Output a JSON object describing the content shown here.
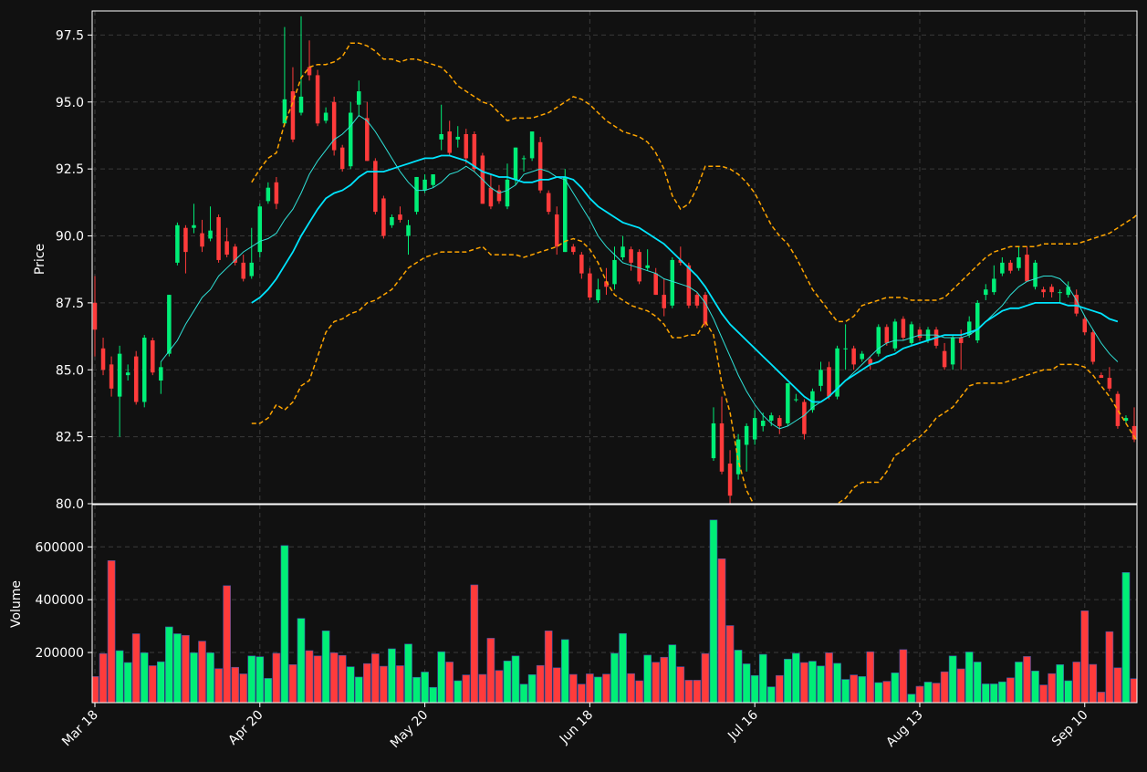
{
  "chart_data": {
    "type": "candlestick",
    "price_panel": {
      "ylabel": "Price",
      "ylim": [
        80.0,
        98.4
      ],
      "yticks": [
        80.0,
        82.5,
        85.0,
        87.5,
        90.0,
        92.5,
        95.0,
        97.5
      ],
      "ytick_labels": [
        "80.0",
        "82.5",
        "85.0",
        "87.5",
        "90.0",
        "92.5",
        "95.0",
        "97.5"
      ],
      "grid": true
    },
    "volume_panel": {
      "ylabel": "Volume",
      "ylim": [
        10000,
        760000
      ],
      "yticks": [
        200000,
        400000,
        600000
      ],
      "ytick_labels": [
        "200000",
        "400000",
        "600000"
      ],
      "grid": true
    },
    "x_axis": {
      "n_days": 127,
      "tick_positions": [
        0,
        20,
        40,
        60,
        80,
        100,
        120
      ],
      "tick_labels": [
        "Mar 18",
        "Apr 20",
        "May 20",
        "Jun 18",
        "Jul 16",
        "Aug 13",
        "Sep 10"
      ]
    },
    "colors": {
      "up": "#00ee77",
      "down": "#ff3b3b",
      "ma_fast": "#2fe0d6",
      "ma_slow": "#00e5ff",
      "band": "#ffa500",
      "grid": "#3a3a3a",
      "background": "#111111",
      "spine": "#ffffff"
    },
    "ohlc": [
      [
        87.5,
        88.5,
        85.5,
        86.5
      ],
      [
        85.8,
        86.2,
        84.8,
        85.0
      ],
      [
        85.2,
        85.5,
        84.0,
        84.3
      ],
      [
        84.0,
        85.9,
        82.5,
        85.6
      ],
      [
        84.8,
        85.2,
        84.6,
        84.9
      ],
      [
        85.5,
        85.7,
        83.7,
        83.8
      ],
      [
        83.8,
        86.3,
        83.6,
        86.2
      ],
      [
        86.1,
        86.2,
        84.8,
        84.9
      ],
      [
        84.6,
        85.3,
        84.1,
        85.1
      ],
      [
        85.6,
        87.8,
        85.5,
        87.8
      ],
      [
        89.0,
        90.5,
        88.9,
        90.4
      ],
      [
        90.3,
        90.4,
        88.6,
        89.4
      ],
      [
        90.3,
        91.2,
        90.1,
        90.4
      ],
      [
        90.1,
        90.6,
        89.4,
        89.6
      ],
      [
        89.9,
        91.1,
        89.8,
        90.2
      ],
      [
        90.7,
        90.8,
        89.0,
        89.1
      ],
      [
        89.8,
        90.3,
        89.2,
        89.3
      ],
      [
        89.6,
        89.7,
        88.9,
        89.0
      ],
      [
        89.0,
        89.3,
        88.3,
        88.4
      ],
      [
        88.5,
        90.3,
        88.4,
        89.0
      ],
      [
        89.4,
        91.2,
        89.2,
        91.1
      ],
      [
        91.3,
        92.0,
        91.2,
        91.8
      ],
      [
        92.0,
        92.2,
        91.0,
        91.2
      ],
      [
        94.2,
        97.8,
        94.1,
        95.1
      ],
      [
        95.4,
        96.3,
        93.5,
        93.6
      ],
      [
        94.6,
        98.2,
        94.5,
        95.2
      ],
      [
        96.3,
        97.3,
        95.8,
        96.0
      ],
      [
        96.0,
        96.2,
        94.1,
        94.2
      ],
      [
        94.3,
        94.8,
        94.2,
        94.6
      ],
      [
        95.0,
        95.2,
        93.0,
        93.2
      ],
      [
        93.3,
        93.4,
        92.4,
        92.5
      ],
      [
        92.6,
        95.0,
        92.5,
        94.6
      ],
      [
        94.9,
        95.8,
        94.5,
        95.4
      ],
      [
        94.4,
        95.0,
        92.8,
        92.8
      ],
      [
        92.8,
        92.9,
        90.8,
        90.9
      ],
      [
        91.4,
        91.5,
        89.9,
        90.0
      ],
      [
        90.4,
        90.8,
        90.3,
        90.7
      ],
      [
        90.8,
        91.1,
        90.5,
        90.6
      ],
      [
        90.0,
        90.6,
        89.3,
        90.4
      ],
      [
        90.9,
        92.2,
        90.8,
        92.2
      ],
      [
        91.7,
        92.3,
        91.6,
        92.1
      ],
      [
        91.9,
        92.3,
        91.8,
        92.3
      ],
      [
        93.6,
        94.9,
        93.2,
        93.8
      ],
      [
        93.9,
        94.3,
        93.0,
        93.1
      ],
      [
        93.6,
        94.1,
        93.3,
        93.7
      ],
      [
        93.8,
        94.0,
        92.7,
        92.9
      ],
      [
        93.8,
        93.9,
        92.4,
        92.5
      ],
      [
        93.0,
        93.1,
        91.2,
        91.2
      ],
      [
        91.8,
        92.3,
        91.0,
        91.1
      ],
      [
        91.7,
        91.9,
        91.2,
        91.3
      ],
      [
        91.1,
        92.7,
        91.0,
        92.1
      ],
      [
        92.1,
        93.3,
        91.9,
        93.3
      ],
      [
        92.9,
        93.0,
        92.4,
        92.9
      ],
      [
        92.9,
        93.9,
        92.8,
        93.9
      ],
      [
        93.5,
        93.7,
        91.6,
        91.7
      ],
      [
        91.6,
        91.7,
        90.8,
        90.9
      ],
      [
        90.8,
        91.1,
        89.3,
        89.6
      ],
      [
        89.4,
        92.5,
        89.4,
        92.2
      ],
      [
        89.6,
        89.7,
        89.3,
        89.4
      ],
      [
        89.3,
        89.4,
        88.4,
        88.6
      ],
      [
        88.6,
        88.8,
        87.6,
        87.7
      ],
      [
        87.6,
        88.4,
        87.5,
        88.0
      ],
      [
        88.3,
        88.8,
        87.8,
        88.1
      ],
      [
        88.2,
        89.6,
        88.0,
        89.1
      ],
      [
        89.2,
        90.0,
        89.1,
        89.6
      ],
      [
        89.5,
        89.6,
        88.7,
        89.0
      ],
      [
        89.4,
        89.5,
        88.2,
        88.3
      ],
      [
        88.8,
        89.5,
        88.7,
        88.9
      ],
      [
        88.6,
        88.8,
        87.8,
        87.8
      ],
      [
        87.8,
        88.4,
        87.0,
        87.3
      ],
      [
        87.4,
        89.2,
        87.3,
        89.1
      ],
      [
        89.1,
        89.6,
        88.9,
        89.0
      ],
      [
        88.9,
        89.0,
        87.3,
        87.4
      ],
      [
        87.8,
        87.9,
        87.3,
        87.4
      ],
      [
        87.8,
        87.9,
        86.6,
        86.7
      ],
      [
        81.7,
        83.6,
        81.6,
        83.0
      ],
      [
        83.0,
        84.0,
        81.1,
        81.2
      ],
      [
        81.5,
        82.0,
        80.0,
        80.3
      ],
      [
        81.1,
        82.6,
        80.9,
        82.4
      ],
      [
        82.2,
        83.0,
        81.2,
        82.9
      ],
      [
        82.4,
        83.5,
        82.2,
        83.2
      ],
      [
        82.9,
        83.4,
        82.7,
        83.1
      ],
      [
        83.1,
        83.4,
        82.9,
        83.3
      ],
      [
        83.2,
        83.3,
        82.6,
        82.9
      ],
      [
        83.0,
        84.5,
        82.9,
        84.5
      ],
      [
        83.9,
        84.1,
        83.8,
        83.9
      ],
      [
        83.8,
        83.9,
        82.4,
        82.6
      ],
      [
        83.5,
        84.3,
        83.4,
        84.2
      ],
      [
        84.4,
        85.3,
        84.2,
        85.0
      ],
      [
        85.1,
        85.3,
        83.9,
        84.0
      ],
      [
        84.0,
        85.9,
        83.9,
        85.8
      ],
      [
        85.8,
        86.7,
        85.0,
        85.8
      ],
      [
        85.8,
        85.9,
        85.0,
        85.2
      ],
      [
        85.4,
        85.7,
        85.3,
        85.6
      ],
      [
        85.4,
        85.5,
        85.0,
        85.2
      ],
      [
        85.6,
        86.7,
        85.5,
        86.6
      ],
      [
        86.6,
        86.7,
        85.9,
        86.0
      ],
      [
        85.8,
        86.9,
        85.7,
        86.8
      ],
      [
        86.9,
        87.0,
        86.1,
        86.2
      ],
      [
        86.0,
        86.8,
        85.9,
        86.7
      ],
      [
        86.5,
        86.6,
        86.1,
        86.2
      ],
      [
        86.1,
        86.6,
        86.0,
        86.5
      ],
      [
        86.5,
        86.6,
        85.8,
        85.9
      ],
      [
        85.7,
        86.0,
        85.0,
        85.1
      ],
      [
        85.2,
        86.3,
        85.0,
        86.2
      ],
      [
        86.2,
        86.5,
        85.0,
        86.0
      ],
      [
        86.3,
        87.0,
        86.2,
        86.8
      ],
      [
        86.1,
        87.6,
        86.0,
        87.5
      ],
      [
        87.8,
        88.2,
        87.6,
        88.0
      ],
      [
        87.9,
        88.9,
        87.8,
        88.4
      ],
      [
        88.6,
        89.2,
        88.5,
        89.0
      ],
      [
        89.0,
        89.1,
        88.6,
        88.7
      ],
      [
        88.8,
        89.6,
        88.7,
        89.2
      ],
      [
        89.3,
        89.6,
        88.3,
        88.3
      ],
      [
        88.1,
        89.1,
        88.0,
        89.0
      ],
      [
        88.0,
        88.1,
        87.7,
        87.9
      ],
      [
        88.1,
        88.2,
        87.7,
        87.9
      ],
      [
        87.9,
        88.0,
        87.5,
        87.9
      ],
      [
        87.8,
        88.3,
        87.7,
        88.1
      ],
      [
        87.8,
        88.0,
        87.0,
        87.1
      ],
      [
        86.9,
        87.0,
        86.3,
        86.4
      ],
      [
        86.4,
        86.5,
        85.2,
        85.3
      ],
      [
        84.8,
        84.9,
        84.7,
        84.7
      ],
      [
        84.7,
        85.1,
        84.2,
        84.3
      ],
      [
        84.1,
        84.2,
        82.8,
        82.9
      ],
      [
        83.1,
        83.3,
        83.0,
        83.2
      ],
      [
        82.9,
        83.6,
        82.3,
        82.4
      ]
    ],
    "volume": [
      109000,
      196000,
      548000,
      207000,
      162000,
      271000,
      199000,
      150000,
      165000,
      297000,
      271000,
      265000,
      199000,
      243000,
      199000,
      139000,
      453000,
      144000,
      119000,
      187000,
      184000,
      102000,
      197000,
      605000,
      154000,
      329000,
      207000,
      187000,
      282000,
      199000,
      189000,
      146000,
      107000,
      158000,
      195000,
      148000,
      214000,
      150000,
      232000,
      106000,
      126000,
      68000,
      203000,
      164000,
      93000,
      115000,
      456000,
      117000,
      254000,
      132000,
      168000,
      187000,
      80000,
      116000,
      151000,
      282000,
      142000,
      249000,
      117000,
      80000,
      119000,
      107000,
      118000,
      197000,
      272000,
      120000,
      93000,
      190000,
      163000,
      182000,
      229000,
      146000,
      95000,
      95000,
      196000,
      702000,
      555000,
      302000,
      209000,
      157000,
      113000,
      193000,
      70000,
      113000,
      175000,
      197000,
      162000,
      167000,
      149000,
      199000,
      159000,
      98000,
      115000,
      109000,
      203000,
      86000,
      91000,
      123000,
      211000,
      42000,
      72000,
      88000,
      84000,
      127000,
      187000,
      138000,
      202000,
      164000,
      81000,
      81000,
      89000,
      104000,
      164000,
      185000,
      130000,
      77000,
      120000,
      154000,
      93000,
      164000,
      358000,
      155000,
      50000,
      279000,
      142000,
      503000,
      101000
    ],
    "ma_fast": [
      null,
      null,
      null,
      null,
      null,
      null,
      null,
      null,
      85.3,
      85.7,
      86.1,
      86.7,
      87.2,
      87.7,
      88.0,
      88.5,
      88.8,
      89.1,
      89.4,
      89.6,
      89.8,
      89.9,
      90.1,
      90.6,
      91.0,
      91.6,
      92.3,
      92.8,
      93.2,
      93.6,
      93.8,
      94.1,
      94.5,
      94.3,
      93.9,
      93.4,
      92.9,
      92.4,
      92.0,
      91.7,
      91.7,
      91.8,
      92.0,
      92.3,
      92.4,
      92.6,
      92.4,
      92.1,
      91.8,
      91.6,
      91.7,
      91.9,
      92.3,
      92.4,
      92.5,
      92.4,
      92.2,
      92.1,
      91.6,
      91.1,
      90.6,
      90.0,
      89.6,
      89.3,
      89.0,
      88.9,
      88.8,
      88.7,
      88.6,
      88.4,
      88.3,
      88.2,
      88.1,
      87.9,
      87.5,
      86.9,
      86.2,
      85.5,
      84.8,
      84.2,
      83.7,
      83.3,
      83.0,
      82.8,
      82.9,
      83.1,
      83.3,
      83.6,
      83.8,
      84.0,
      84.3,
      84.6,
      84.9,
      85.2,
      85.5,
      85.8,
      86.0,
      86.1,
      86.1,
      86.2,
      86.3,
      86.3,
      86.3,
      86.2,
      86.2,
      86.2,
      86.3,
      86.5,
      86.8,
      87.1,
      87.4,
      87.8,
      88.1,
      88.3,
      88.4,
      88.5,
      88.5,
      88.4,
      88.1,
      87.6,
      87.0,
      86.5,
      86.0,
      85.6,
      85.3,
      null,
      null
    ],
    "ma_slow": [
      null,
      null,
      null,
      null,
      null,
      null,
      null,
      null,
      null,
      null,
      null,
      null,
      null,
      null,
      null,
      null,
      null,
      null,
      null,
      87.5,
      87.7,
      88.0,
      88.4,
      88.9,
      89.4,
      90.0,
      90.5,
      91.0,
      91.4,
      91.6,
      91.7,
      91.9,
      92.2,
      92.4,
      92.4,
      92.4,
      92.5,
      92.6,
      92.7,
      92.8,
      92.9,
      92.9,
      93.0,
      93.0,
      92.9,
      92.8,
      92.6,
      92.4,
      92.3,
      92.2,
      92.2,
      92.1,
      92.0,
      92.0,
      92.1,
      92.1,
      92.2,
      92.2,
      92.1,
      91.8,
      91.4,
      91.1,
      90.9,
      90.7,
      90.5,
      90.4,
      90.3,
      90.1,
      89.9,
      89.7,
      89.4,
      89.1,
      88.8,
      88.5,
      88.1,
      87.6,
      87.1,
      86.7,
      86.4,
      86.1,
      85.8,
      85.5,
      85.2,
      84.9,
      84.6,
      84.3,
      84.0,
      83.8,
      83.8,
      84.0,
      84.3,
      84.6,
      84.8,
      85.0,
      85.2,
      85.3,
      85.5,
      85.6,
      85.8,
      85.9,
      86.0,
      86.1,
      86.2,
      86.3,
      86.3,
      86.3,
      86.4,
      86.5,
      86.8,
      87.0,
      87.2,
      87.3,
      87.3,
      87.4,
      87.5,
      87.5,
      87.5,
      87.5,
      87.4,
      87.4,
      87.3,
      87.2,
      87.1,
      86.9,
      86.8,
      null,
      null
    ],
    "band_upper": [
      null,
      null,
      null,
      null,
      null,
      null,
      null,
      null,
      null,
      null,
      null,
      null,
      null,
      null,
      null,
      null,
      null,
      null,
      null,
      92.0,
      92.5,
      92.9,
      93.1,
      94.2,
      95.0,
      95.9,
      96.3,
      96.4,
      96.4,
      96.5,
      96.7,
      97.2,
      97.2,
      97.1,
      96.9,
      96.6,
      96.6,
      96.5,
      96.6,
      96.6,
      96.5,
      96.4,
      96.3,
      96.0,
      95.6,
      95.4,
      95.2,
      95.0,
      94.9,
      94.6,
      94.3,
      94.4,
      94.4,
      94.4,
      94.5,
      94.6,
      94.8,
      95.0,
      95.2,
      95.1,
      94.9,
      94.6,
      94.3,
      94.1,
      93.9,
      93.8,
      93.7,
      93.5,
      93.1,
      92.5,
      91.5,
      91.0,
      91.2,
      91.8,
      92.6,
      92.6,
      92.6,
      92.5,
      92.3,
      92.0,
      91.6,
      91.0,
      90.4,
      90.0,
      89.7,
      89.2,
      88.6,
      88.0,
      87.6,
      87.2,
      86.8,
      86.8,
      87.0,
      87.4,
      87.5,
      87.6,
      87.7,
      87.7,
      87.7,
      87.6,
      87.6,
      87.6,
      87.6,
      87.7,
      88.0,
      88.3,
      88.6,
      88.9,
      89.2,
      89.4,
      89.5,
      89.6,
      89.6,
      89.6,
      89.6,
      89.7,
      89.7,
      89.7,
      89.7,
      89.7,
      89.8,
      89.9,
      90.0,
      90.1,
      90.3,
      90.5,
      90.7,
      91.0
    ],
    "band_lower": [
      null,
      null,
      null,
      null,
      null,
      null,
      null,
      null,
      null,
      null,
      null,
      null,
      null,
      null,
      null,
      null,
      null,
      null,
      null,
      83.0,
      83.0,
      83.2,
      83.7,
      83.5,
      83.8,
      84.4,
      84.6,
      85.5,
      86.4,
      86.8,
      86.9,
      87.1,
      87.2,
      87.5,
      87.6,
      87.8,
      88.0,
      88.4,
      88.8,
      89.0,
      89.2,
      89.3,
      89.4,
      89.4,
      89.4,
      89.4,
      89.5,
      89.6,
      89.3,
      89.3,
      89.3,
      89.3,
      89.2,
      89.3,
      89.4,
      89.5,
      89.6,
      89.8,
      89.9,
      89.8,
      89.5,
      89.0,
      88.3,
      87.8,
      87.6,
      87.4,
      87.3,
      87.2,
      87.0,
      86.7,
      86.2,
      86.2,
      86.3,
      86.3,
      86.8,
      86.3,
      84.5,
      83.4,
      81.6,
      80.5,
      79.9,
      79.5,
      79.0,
      78.6,
      78.3,
      78.0,
      78.2,
      78.6,
      79.2,
      79.6,
      80.0,
      80.2,
      80.6,
      80.8,
      80.8,
      80.8,
      81.2,
      81.8,
      82.0,
      82.3,
      82.5,
      82.8,
      83.2,
      83.4,
      83.6,
      84.0,
      84.4,
      84.5,
      84.5,
      84.5,
      84.5,
      84.6,
      84.7,
      84.8,
      84.9,
      85.0,
      85.0,
      85.2,
      85.2,
      85.2,
      85.1,
      84.8,
      84.4,
      84.0,
      83.5,
      83.0,
      82.5,
      82.0
    ]
  }
}
